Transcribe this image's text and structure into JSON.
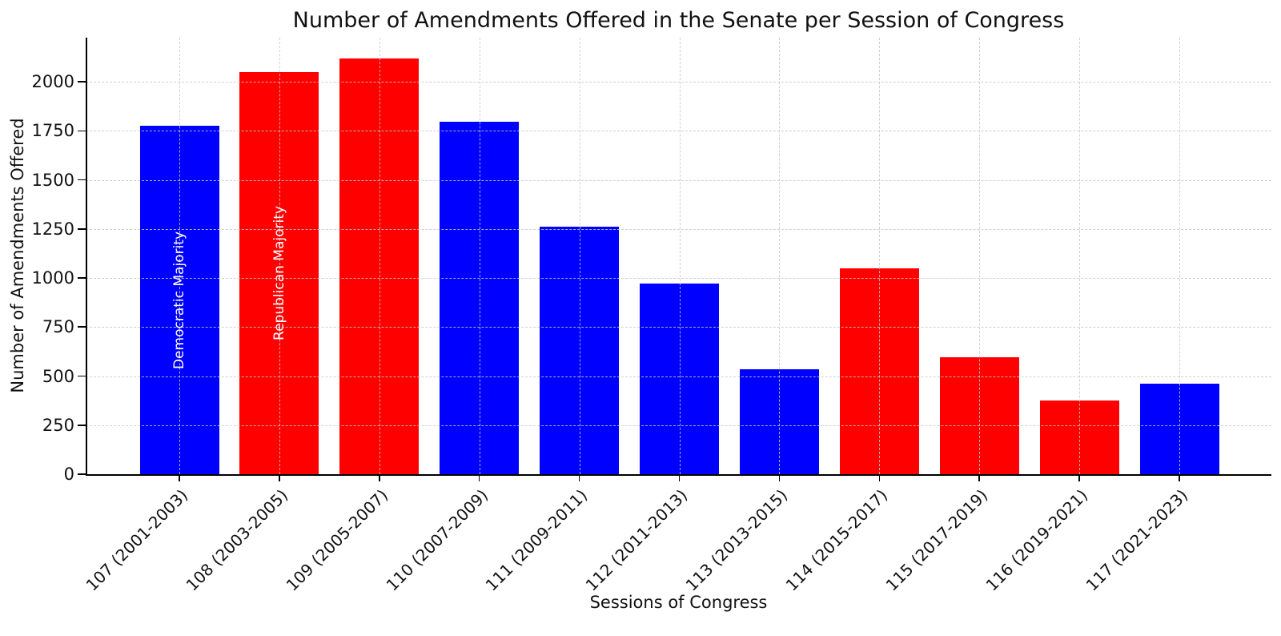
{
  "chart_data": {
    "type": "bar",
    "title": "Number of Amendments Offered in the Senate per Session of Congress",
    "xlabel": "Sessions of Congress",
    "ylabel": "Number of Amendments Offered",
    "categories": [
      "107 (2001-2003)",
      "108 (2003-2005)",
      "109 (2005-2007)",
      "110 (2007-2009)",
      "111 (2009-2011)",
      "112 (2011-2013)",
      "113 (2013-2015)",
      "114 (2015-2017)",
      "115 (2017-2019)",
      "116 (2019-2021)",
      "117 (2021-2023)"
    ],
    "values": [
      1775,
      2050,
      2120,
      1795,
      1260,
      970,
      535,
      1050,
      595,
      375,
      460
    ],
    "bar_parties": [
      "democratic",
      "republican",
      "republican",
      "democratic",
      "democratic",
      "democratic",
      "democratic",
      "republican",
      "republican",
      "republican",
      "democratic"
    ],
    "party_colors": {
      "democratic": "#0000ff",
      "republican": "#ff0000"
    },
    "bar_annotations": [
      {
        "bar_index": 0,
        "text": "Democratic Majority",
        "color": "#ffffff"
      },
      {
        "bar_index": 1,
        "text": "Republican Majority",
        "color": "#ffffff"
      }
    ],
    "yticks": [
      0,
      250,
      500,
      750,
      1000,
      1250,
      1500,
      1750,
      2000
    ],
    "ylim": [
      0,
      2225
    ],
    "grid": true,
    "grid_line_style": "dashed",
    "grid_color": "#c8c8c8",
    "axis_color": "#000000",
    "text_color": "#111111",
    "legend_position": "none"
  }
}
